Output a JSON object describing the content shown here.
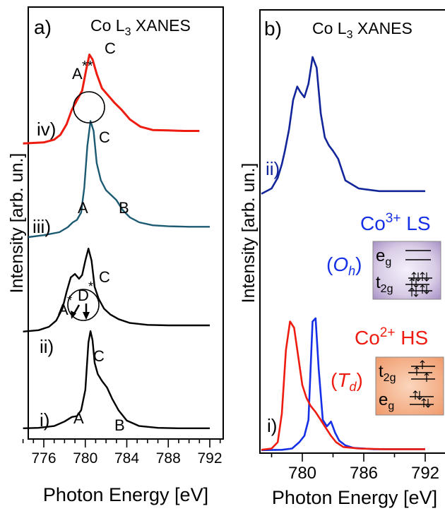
{
  "colors": {
    "iv": "#ee1c10",
    "iii": "#1b5a72",
    "ii_a": "#000000",
    "i_a": "#000000",
    "ii_b": "#13259a",
    "co3_text": "#1530e6",
    "co2_text": "#ee1c10",
    "co3_box": "#c7b6d8",
    "co2_box": "#f2a67c"
  },
  "panel_a": {
    "letter": "a)",
    "title_pre": "Co L",
    "title_sub": "3",
    "title_post": "XANES",
    "ylabel": "Intensity [arb. un.]",
    "xlabel": "Photon Energy [eV]",
    "x_ticks": [
      "776",
      "780",
      "784",
      "788",
      "792"
    ],
    "spectrum_labels": {
      "iv": "iv)",
      "iii": "iii)",
      "ii": "ii)",
      "i": "i)"
    },
    "peak_labels": {
      "iv_A": "A",
      "iv_A_star": "**",
      "iv_C": "C",
      "iii_A": "A",
      "iii_C": "C",
      "iii_B": "B",
      "ii_A": "A",
      "ii_A_star": "*",
      "ii_D": "D",
      "ii_D_star": "*",
      "ii_C": "C",
      "i_A": "A",
      "i_C": "C",
      "i_B": "B"
    }
  },
  "panel_b": {
    "letter": "b)",
    "title_pre": "Co L",
    "title_sub": "3",
    "title_post": "XANES",
    "ylabel": "Intensity [arb. un.]",
    "xlabel": "Photon Energy [eV]",
    "x_ticks": [
      "780",
      "786",
      "792"
    ],
    "spectrum_labels": {
      "ii": "ii)",
      "i": "i)"
    },
    "co3": {
      "ion": "Co",
      "charge": "3+",
      "spin": "LS",
      "sym_pre": "(",
      "sym": "O",
      "sym_sub": "h",
      "sym_post": ")"
    },
    "co2": {
      "ion": "Co",
      "charge": "2+",
      "spin": "HS",
      "sym_pre": "(",
      "sym": "T",
      "sym_sub": "d",
      "sym_post": ")"
    },
    "box_oh": {
      "top": "e",
      "top_sub": "g",
      "bottom": "t",
      "bottom_sub": "2g"
    },
    "box_td": {
      "top": "t",
      "top_sub": "2g",
      "bottom": "e",
      "bottom_sub": "g"
    }
  },
  "chart_data": [
    {
      "type": "line",
      "panel": "a",
      "xlim": [
        773,
        793
      ],
      "x_ticks": [
        776,
        780,
        784,
        788,
        792
      ],
      "grid": false,
      "series": [
        {
          "name": "iv)",
          "color": "#ee1c10",
          "x": [
            774,
            776,
            777,
            777.6,
            778.2,
            778.7,
            779.2,
            779.7,
            780.1,
            780.4,
            780.7,
            781.1,
            781.6,
            782.2,
            782.8,
            783.5,
            784.3,
            785.3,
            786.5,
            788,
            789.5,
            791
          ],
          "y": [
            0.1,
            0.12,
            0.18,
            0.28,
            0.5,
            0.8,
            1.0,
            1.2,
            1.65,
            1.95,
            1.85,
            1.55,
            1.25,
            1.1,
            0.95,
            0.8,
            0.6,
            0.45,
            0.38,
            0.37,
            0.36,
            0.36
          ]
        },
        {
          "name": "iii)",
          "color": "#1b5a72",
          "x": [
            774.5,
            776,
            777.5,
            778.3,
            778.8,
            779.2,
            779.6,
            779.9,
            780.2,
            780.5,
            780.8,
            781.1,
            781.5,
            782,
            782.5,
            783,
            783.6,
            784.3,
            785.2,
            786.5,
            788,
            790,
            792
          ],
          "y": [
            0.2,
            0.24,
            0.3,
            0.4,
            0.5,
            0.55,
            0.7,
            1.2,
            2.05,
            2.55,
            2.35,
            1.7,
            1.35,
            1.15,
            1.05,
            0.95,
            0.75,
            0.6,
            0.5,
            0.44,
            0.42,
            0.41,
            0.41
          ]
        },
        {
          "name": "ii)",
          "color": "#000000",
          "x": [
            774,
            775.5,
            776.5,
            777.2,
            777.8,
            778.2,
            778.6,
            779,
            779.4,
            779.7,
            780.0,
            780.3,
            780.6,
            780.9,
            781.3,
            781.8,
            782.4,
            783.2,
            784.3,
            786,
            788,
            790,
            792
          ],
          "y": [
            0.12,
            0.15,
            0.22,
            0.35,
            0.6,
            0.95,
            1.25,
            1.32,
            1.22,
            1.3,
            1.6,
            1.85,
            1.6,
            1.05,
            0.8,
            0.6,
            0.48,
            0.38,
            0.3,
            0.26,
            0.25,
            0.25,
            0.25
          ]
        },
        {
          "name": "i)",
          "color": "#000000",
          "x": [
            774,
            775.5,
            777,
            778,
            778.7,
            779.2,
            779.6,
            780.0,
            780.3,
            780.5,
            780.7,
            780.9,
            781.2,
            781.6,
            782.1,
            782.6,
            783.2,
            784,
            785.2,
            787,
            789,
            791,
            792
          ],
          "y": [
            0.05,
            0.06,
            0.1,
            0.2,
            0.3,
            0.32,
            0.45,
            0.9,
            1.95,
            2.2,
            2.0,
            1.5,
            1.25,
            1.1,
            0.95,
            0.7,
            0.45,
            0.22,
            0.1,
            0.06,
            0.05,
            0.05,
            0.05
          ]
        }
      ]
    },
    {
      "type": "line",
      "panel": "b",
      "xlim": [
        775.5,
        793
      ],
      "x_ticks": [
        780,
        786,
        792
      ],
      "grid": false,
      "series": [
        {
          "name": "ii)",
          "color": "#13259a",
          "x": [
            776,
            777,
            777.6,
            778,
            778.3,
            778.7,
            779.1,
            779.5,
            779.8,
            780.2,
            780.6,
            781.0,
            781.4,
            781.8,
            782.2,
            782.6,
            783.0,
            783.5,
            784.2,
            785.5,
            787.5,
            790,
            792
          ],
          "y": [
            0.3,
            0.5,
            0.9,
            1.4,
            1.9,
            2.7,
            3.8,
            4.3,
            4.1,
            3.9,
            4.4,
            5.4,
            5.0,
            3.3,
            2.4,
            2.1,
            1.9,
            1.6,
            0.8,
            0.5,
            0.4,
            0.4,
            0.4
          ]
        },
        {
          "name": "Co3+ LS (Oh)",
          "color": "#1530e6",
          "x": [
            776,
            778,
            779,
            779.7,
            780.2,
            780.6,
            781.0,
            781.3,
            781.6,
            782.0,
            782.4,
            782.8,
            783.2,
            783.6,
            784.2,
            785,
            787,
            790,
            792
          ],
          "y": [
            0.05,
            0.06,
            0.1,
            0.3,
            0.5,
            1.0,
            4.1,
            4.2,
            2.6,
            1.0,
            0.8,
            0.95,
            0.6,
            0.35,
            0.2,
            0.12,
            0.08,
            0.08,
            0.08
          ]
        },
        {
          "name": "Co2+ HS (Td)",
          "color": "#ee1c10",
          "x": [
            776,
            777,
            777.6,
            778.0,
            778.4,
            778.8,
            779.2,
            779.6,
            780.0,
            780.4,
            780.8,
            781.3,
            781.8,
            782.3,
            782.8,
            783.3,
            784,
            785.5,
            788,
            790,
            792
          ],
          "y": [
            0.06,
            0.1,
            0.3,
            1.2,
            3.2,
            4.1,
            3.9,
            3.0,
            2.1,
            1.7,
            1.45,
            1.25,
            1.0,
            0.75,
            0.5,
            0.3,
            0.15,
            0.1,
            0.08,
            0.08,
            0.08
          ]
        }
      ]
    }
  ]
}
